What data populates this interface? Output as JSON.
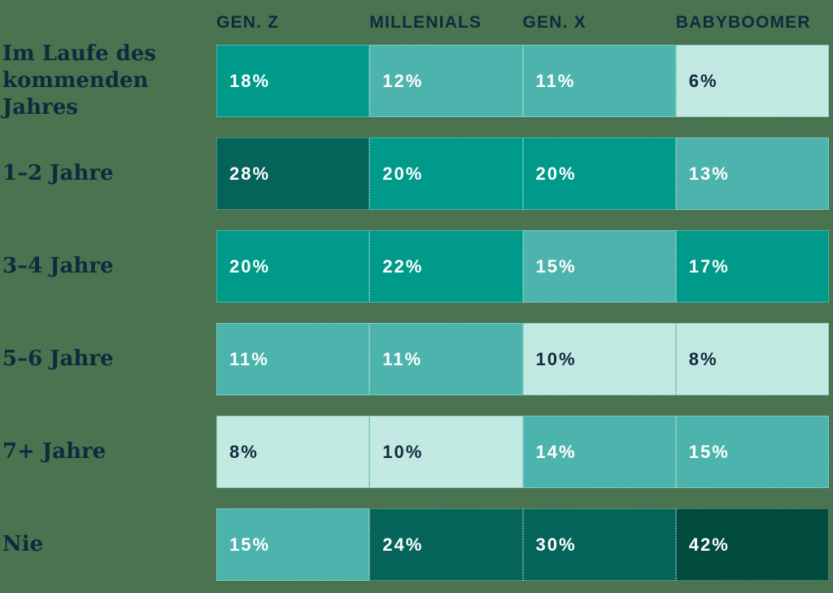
{
  "page": {
    "background_color": "#4A7350",
    "text_color": "#0F2B3D"
  },
  "table": {
    "columns": [
      "GEN. Z",
      "MILLENIALS",
      "GEN. X",
      "BABYBOOMER"
    ],
    "rows": [
      {
        "label": "Im Laufe des kommenden Jahres",
        "label_lines": [
          "Im Laufe des",
          "kommenden Jahres"
        ],
        "values": [
          18,
          12,
          11,
          6
        ]
      },
      {
        "label": "1–2 Jahre",
        "label_lines": [
          "1–2 Jahre"
        ],
        "values": [
          28,
          20,
          20,
          13
        ]
      },
      {
        "label": "3–4 Jahre",
        "label_lines": [
          "3–4 Jahre"
        ],
        "values": [
          20,
          22,
          15,
          17
        ]
      },
      {
        "label": "5–6 Jahre",
        "label_lines": [
          "5–6 Jahre"
        ],
        "values": [
          11,
          11,
          10,
          8
        ]
      },
      {
        "label": "7+ Jahre",
        "label_lines": [
          "7+ Jahre"
        ],
        "values": [
          8,
          10,
          14,
          15
        ]
      },
      {
        "label": "Nie",
        "label_lines": [
          "Nie"
        ],
        "values": [
          15,
          24,
          30,
          42
        ]
      }
    ],
    "unit": "%",
    "color_bins": [
      {
        "max": 10,
        "bg": "#C3E9E3",
        "text": "#0F2B3D",
        "style": "light-cell"
      },
      {
        "max": 15,
        "bg": "#4CB4AC",
        "text": "#FFFFFF",
        "style": ""
      },
      {
        "max": 22,
        "bg": "#009A8B",
        "text": "#FFFFFF",
        "style": ""
      },
      {
        "max": 30,
        "bg": "#046459",
        "text": "#FFFFFF",
        "style": ""
      },
      {
        "max": 100,
        "bg": "#004B3E",
        "text": "#FFFFFF",
        "style": ""
      }
    ]
  },
  "chart_data": {
    "type": "heatmap",
    "title": "",
    "columns": [
      "GEN. Z",
      "MILLENIALS",
      "GEN. X",
      "BABYBOOMER"
    ],
    "rows": [
      "Im Laufe des kommenden Jahres",
      "1–2 Jahre",
      "3–4 Jahre",
      "5–6 Jahre",
      "7+ Jahre",
      "Nie"
    ],
    "series": [
      {
        "name": "Im Laufe des kommenden Jahres",
        "values": [
          18,
          12,
          11,
          6
        ]
      },
      {
        "name": "1–2 Jahre",
        "values": [
          28,
          20,
          20,
          13
        ]
      },
      {
        "name": "3–4 Jahre",
        "values": [
          20,
          22,
          15,
          17
        ]
      },
      {
        "name": "5–6 Jahre",
        "values": [
          11,
          11,
          10,
          8
        ]
      },
      {
        "name": "7+ Jahre",
        "values": [
          8,
          10,
          14,
          15
        ]
      },
      {
        "name": "Nie",
        "values": [
          15,
          24,
          30,
          42
        ]
      }
    ],
    "unit": "%",
    "legend": "none",
    "grid": false,
    "color_scale": "teal shades, darker = higher percentage; values <= 10% shown on pale mint with dark text"
  }
}
